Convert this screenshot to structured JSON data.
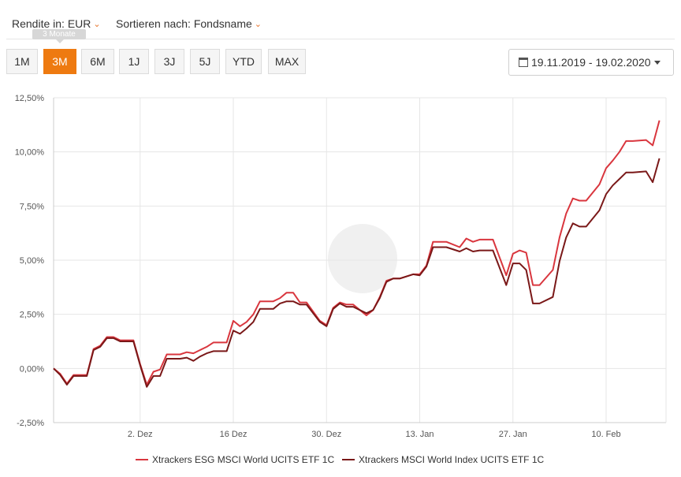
{
  "controls": {
    "rendite_label": "Rendite in: EUR",
    "sort_label": "Sortieren nach: Fondsname",
    "tooltip": "3 Monate",
    "ranges": [
      "1M",
      "3M",
      "6M",
      "1J",
      "3J",
      "5J",
      "YTD",
      "MAX"
    ],
    "active_range": "3M",
    "date_range": "19.11.2019 - 19.02.2020"
  },
  "colors": {
    "accent": "#ee7a10",
    "series_esg": "#d9363e",
    "series_index": "#7a1818",
    "grid": "#e6e6e6"
  },
  "chart_data": {
    "type": "line",
    "ylim": [
      -2.5,
      12.5
    ],
    "y_ticks": [
      "12,50%",
      "10,00%",
      "7,50%",
      "5,00%",
      "2,50%",
      "0,00%",
      "-2,50%"
    ],
    "y_tick_values": [
      12.5,
      10,
      7.5,
      5,
      2.5,
      0,
      -2.5
    ],
    "x_ticks": [
      "2. Dez",
      "16 Dez",
      "30. Dez",
      "13. Jan",
      "27. Jan",
      "10. Feb"
    ],
    "x_tick_index": [
      13,
      27,
      41,
      55,
      69,
      83
    ],
    "x_range": [
      0,
      92
    ],
    "series": [
      {
        "name": "Xtrackers ESG MSCI World UCITS ETF 1C",
        "x": [
          0,
          1,
          2,
          3,
          5,
          6,
          7,
          8,
          9,
          10,
          12,
          13,
          14,
          15,
          16,
          17,
          19,
          20,
          21,
          22,
          23,
          24,
          26,
          27,
          28,
          29,
          30,
          31,
          33,
          34,
          35,
          36,
          37,
          38,
          40,
          41,
          42,
          43,
          44,
          45,
          47,
          48,
          49,
          50,
          51,
          52,
          54,
          55,
          56,
          57,
          58,
          59,
          61,
          62,
          63,
          64,
          65,
          66,
          68,
          69,
          70,
          71,
          72,
          73,
          75,
          76,
          77,
          78,
          79,
          80,
          82,
          83,
          84,
          85,
          86,
          87,
          89,
          90,
          91
        ],
        "values": [
          0.0,
          -0.25,
          -0.7,
          -0.3,
          -0.3,
          0.9,
          1.05,
          1.45,
          1.45,
          1.3,
          1.3,
          0.2,
          -0.75,
          -0.15,
          -0.05,
          0.65,
          0.65,
          0.75,
          0.7,
          0.85,
          1.0,
          1.2,
          1.2,
          2.2,
          1.95,
          2.15,
          2.5,
          3.1,
          3.1,
          3.25,
          3.5,
          3.5,
          3.05,
          3.05,
          2.2,
          2.0,
          2.8,
          3.05,
          2.95,
          2.95,
          2.45,
          2.7,
          3.3,
          4.05,
          4.15,
          4.15,
          4.35,
          4.35,
          4.75,
          5.85,
          5.85,
          5.85,
          5.6,
          6.0,
          5.85,
          5.95,
          5.95,
          5.95,
          4.3,
          5.3,
          5.45,
          5.35,
          3.85,
          3.85,
          4.55,
          6.05,
          7.15,
          7.85,
          7.75,
          7.75,
          8.5,
          9.25,
          9.6,
          10.0,
          10.5,
          10.5,
          10.55,
          10.3,
          11.45
        ]
      },
      {
        "name": "Xtrackers MSCI World Index UCITS ETF 1C",
        "x": [
          0,
          1,
          2,
          3,
          5,
          6,
          7,
          8,
          9,
          10,
          12,
          13,
          14,
          15,
          16,
          17,
          19,
          20,
          21,
          22,
          23,
          24,
          26,
          27,
          28,
          29,
          30,
          31,
          33,
          34,
          35,
          36,
          37,
          38,
          40,
          41,
          42,
          43,
          44,
          45,
          47,
          48,
          49,
          50,
          51,
          52,
          54,
          55,
          56,
          57,
          58,
          59,
          61,
          62,
          63,
          64,
          65,
          66,
          68,
          69,
          70,
          71,
          72,
          73,
          75,
          76,
          77,
          78,
          79,
          80,
          82,
          83,
          84,
          85,
          86,
          87,
          89,
          90,
          91
        ],
        "values": [
          0.0,
          -0.3,
          -0.75,
          -0.35,
          -0.35,
          0.85,
          1.0,
          1.4,
          1.4,
          1.25,
          1.25,
          0.15,
          -0.85,
          -0.35,
          -0.35,
          0.45,
          0.45,
          0.5,
          0.35,
          0.55,
          0.7,
          0.8,
          0.8,
          1.75,
          1.6,
          1.85,
          2.15,
          2.75,
          2.75,
          3.0,
          3.1,
          3.1,
          2.95,
          2.95,
          2.15,
          1.95,
          2.75,
          3.0,
          2.85,
          2.85,
          2.55,
          2.7,
          3.25,
          4.0,
          4.15,
          4.15,
          4.35,
          4.3,
          4.7,
          5.6,
          5.6,
          5.6,
          5.4,
          5.55,
          5.4,
          5.45,
          5.45,
          5.45,
          3.85,
          4.85,
          4.85,
          4.55,
          3.0,
          3.0,
          3.3,
          4.95,
          6.05,
          6.7,
          6.55,
          6.55,
          7.3,
          8.05,
          8.45,
          8.75,
          9.05,
          9.05,
          9.1,
          8.6,
          9.7
        ]
      }
    ]
  }
}
